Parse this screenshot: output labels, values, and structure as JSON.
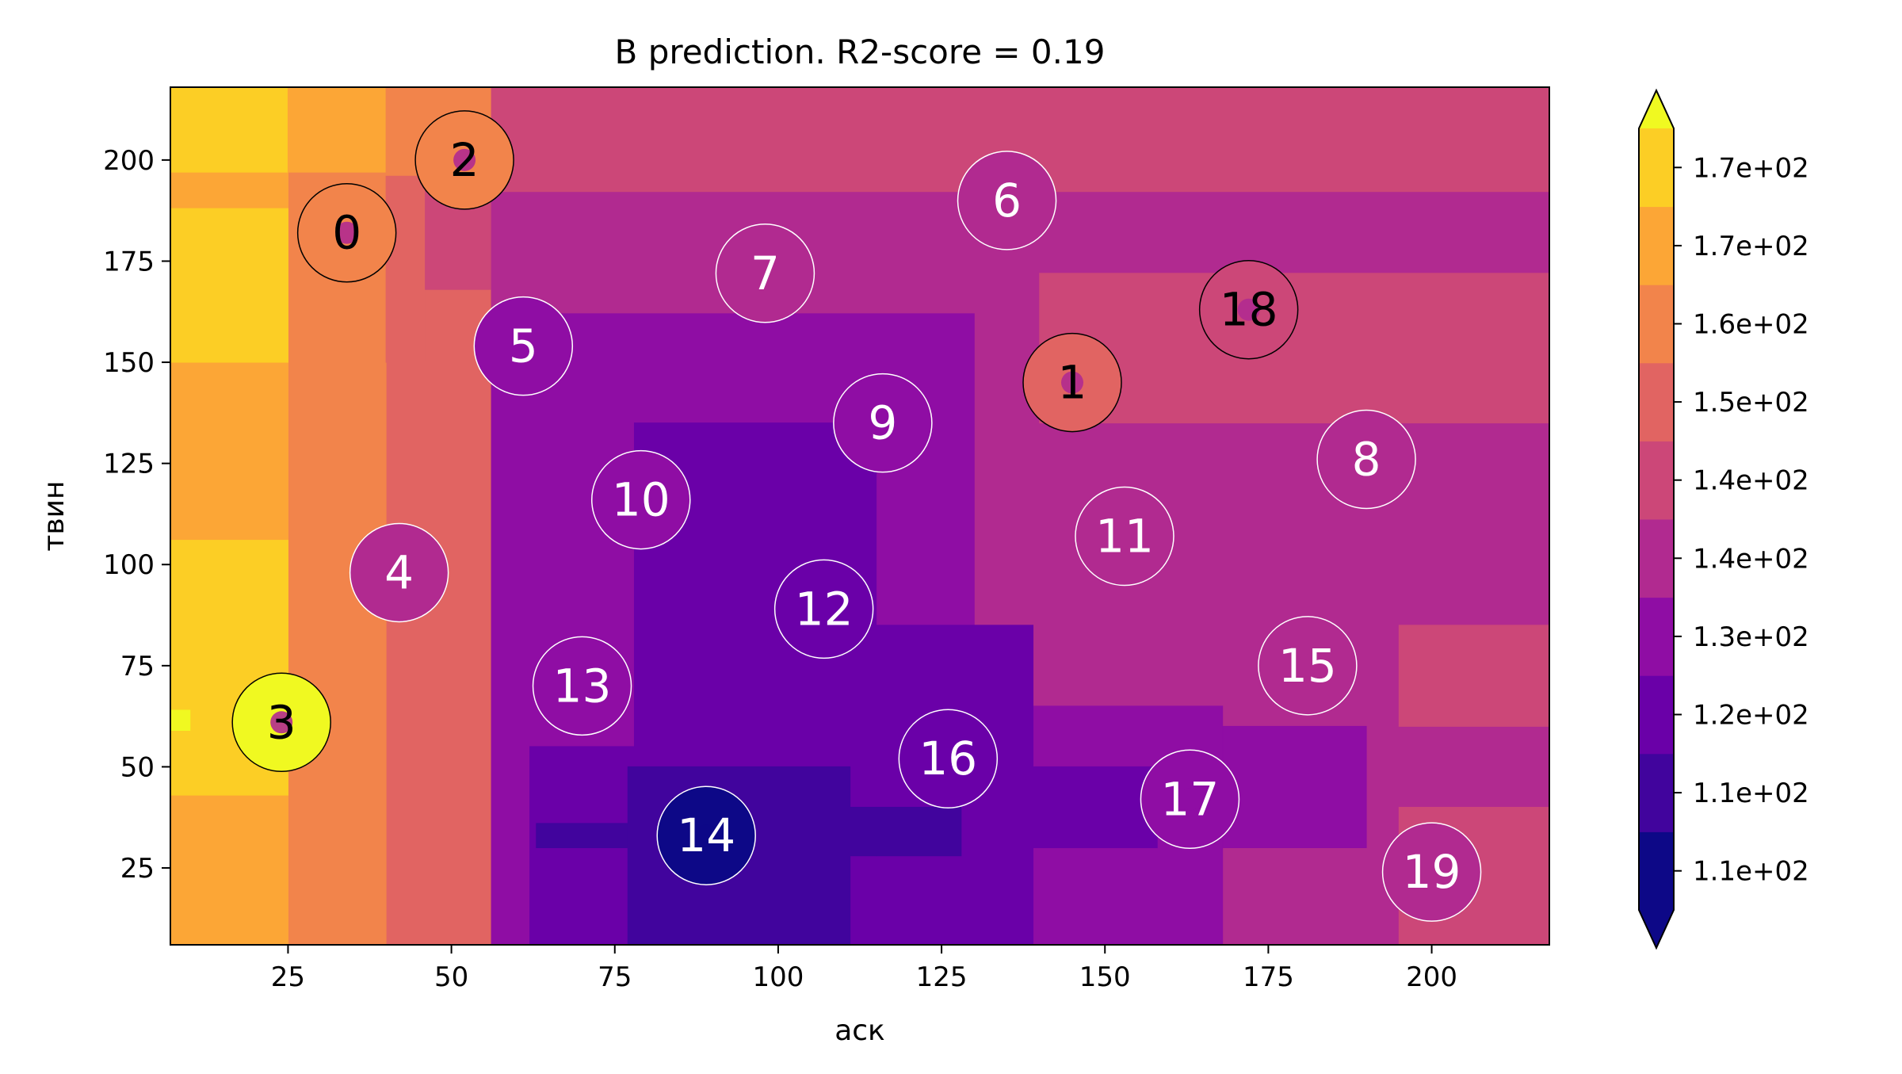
{
  "chart_data": {
    "type": "heatmap",
    "title": "B prediction. R2-score = 0.19",
    "xlabel": "аск",
    "ylabel": "твин",
    "xlim": [
      7,
      218
    ],
    "ylim": [
      6,
      218
    ],
    "x_ticks": [
      25,
      50,
      75,
      100,
      125,
      150,
      175,
      200
    ],
    "y_ticks": [
      25,
      50,
      75,
      100,
      125,
      150,
      175,
      200
    ],
    "colorbar": {
      "extend": "both",
      "tick_labels": [
        "1.1e+02",
        "1.1e+02",
        "1.2e+02",
        "1.3e+02",
        "1.4e+02",
        "1.4e+02",
        "1.5e+02",
        "1.6e+02",
        "1.7e+02",
        "1.7e+02"
      ],
      "colors": [
        "#0d0887",
        "#41049d",
        "#6a00a8",
        "#8f0da4",
        "#b12a90",
        "#cc4778",
        "#e16462",
        "#f2844b",
        "#fca636",
        "#fcce25"
      ],
      "under_color": "#0d0887",
      "over_color": "#f0f921"
    },
    "points": [
      {
        "label": "0",
        "x": 34,
        "y": 182,
        "level": 7
      },
      {
        "label": "1",
        "x": 145,
        "y": 145,
        "level": 6
      },
      {
        "label": "2",
        "x": 52,
        "y": 200,
        "level": 7
      },
      {
        "label": "3",
        "x": 24,
        "y": 61,
        "level": 10
      },
      {
        "label": "4",
        "x": 42,
        "y": 98,
        "level": 4
      },
      {
        "label": "5",
        "x": 61,
        "y": 154,
        "level": 3
      },
      {
        "label": "6",
        "x": 135,
        "y": 190,
        "level": 4
      },
      {
        "label": "7",
        "x": 98,
        "y": 172,
        "level": 4
      },
      {
        "label": "8",
        "x": 190,
        "y": 126,
        "level": 4
      },
      {
        "label": "9",
        "x": 116,
        "y": 135,
        "level": 3
      },
      {
        "label": "10",
        "x": 79,
        "y": 116,
        "level": 3
      },
      {
        "label": "11",
        "x": 153,
        "y": 107,
        "level": 4
      },
      {
        "label": "12",
        "x": 107,
        "y": 89,
        "level": 2
      },
      {
        "label": "13",
        "x": 70,
        "y": 70,
        "level": 3
      },
      {
        "label": "14",
        "x": 89,
        "y": 33,
        "level": 0
      },
      {
        "label": "15",
        "x": 181,
        "y": 75,
        "level": 4
      },
      {
        "label": "16",
        "x": 126,
        "y": 52,
        "level": 2
      },
      {
        "label": "17",
        "x": 163,
        "y": 42,
        "level": 3
      },
      {
        "label": "18",
        "x": 172,
        "y": 163,
        "level": 5
      },
      {
        "label": "19",
        "x": 200,
        "y": 24,
        "level": 4
      }
    ],
    "regions": [
      {
        "x0": 7,
        "x1": 218,
        "y0": 6,
        "y1": 218,
        "level": 5
      },
      {
        "x0": 56,
        "x1": 218,
        "y0": 6,
        "y1": 192,
        "level": 4
      },
      {
        "x0": 40,
        "x1": 56,
        "y0": 6,
        "y1": 168,
        "level": 4
      },
      {
        "x0": 140,
        "x1": 218,
        "y0": 135,
        "y1": 172,
        "level": 5
      },
      {
        "x0": 195,
        "x1": 218,
        "y0": 6,
        "y1": 40,
        "level": 5
      },
      {
        "x0": 195,
        "x1": 218,
        "y0": 60,
        "y1": 85,
        "level": 5
      },
      {
        "x0": 46,
        "x1": 130,
        "y0": 6,
        "y1": 162,
        "level": 3
      },
      {
        "x0": 130,
        "x1": 168,
        "y0": 6,
        "y1": 65,
        "level": 3
      },
      {
        "x0": 168,
        "x1": 190,
        "y0": 30,
        "y1": 60,
        "level": 3
      },
      {
        "x0": 78,
        "x1": 115,
        "y0": 6,
        "y1": 135,
        "level": 2
      },
      {
        "x0": 62,
        "x1": 78,
        "y0": 6,
        "y1": 55,
        "level": 2
      },
      {
        "x0": 115,
        "x1": 139,
        "y0": 6,
        "y1": 85,
        "level": 2
      },
      {
        "x0": 139,
        "x1": 158,
        "y0": 30,
        "y1": 50,
        "level": 2
      },
      {
        "x0": 77,
        "x1": 111,
        "y0": 6,
        "y1": 50,
        "level": 1
      },
      {
        "x0": 63,
        "x1": 77,
        "y0": 30,
        "y1": 36,
        "level": 1
      },
      {
        "x0": 111,
        "x1": 128,
        "y0": 28,
        "y1": 40,
        "level": 1
      },
      {
        "x0": 7,
        "x1": 56,
        "y0": 6,
        "y1": 218,
        "level": 6
      },
      {
        "x0": 7,
        "x1": 40,
        "y0": 6,
        "y1": 218,
        "level": 7
      },
      {
        "x0": 7,
        "x1": 25,
        "y0": 6,
        "y1": 218,
        "level": 8
      },
      {
        "x0": 7,
        "x1": 25,
        "y0": 43,
        "y1": 106,
        "level": 9
      },
      {
        "x0": 7,
        "x1": 25,
        "y0": 150,
        "y1": 188,
        "level": 9
      },
      {
        "x0": 7,
        "x1": 25,
        "y0": 197,
        "y1": 218,
        "level": 9
      },
      {
        "x0": 7,
        "x1": 10,
        "y0": 59,
        "y1": 64,
        "level": 10
      },
      {
        "x0": 25,
        "x1": 40,
        "y0": 197,
        "y1": 218,
        "level": 8
      },
      {
        "x0": 40,
        "x1": 56,
        "y0": 196,
        "y1": 218,
        "level": 7
      },
      {
        "x0": 40,
        "x1": 46,
        "y0": 150,
        "y1": 196,
        "level": 6
      },
      {
        "x0": 46,
        "x1": 56,
        "y0": 168,
        "y1": 196,
        "level": 5
      }
    ]
  }
}
